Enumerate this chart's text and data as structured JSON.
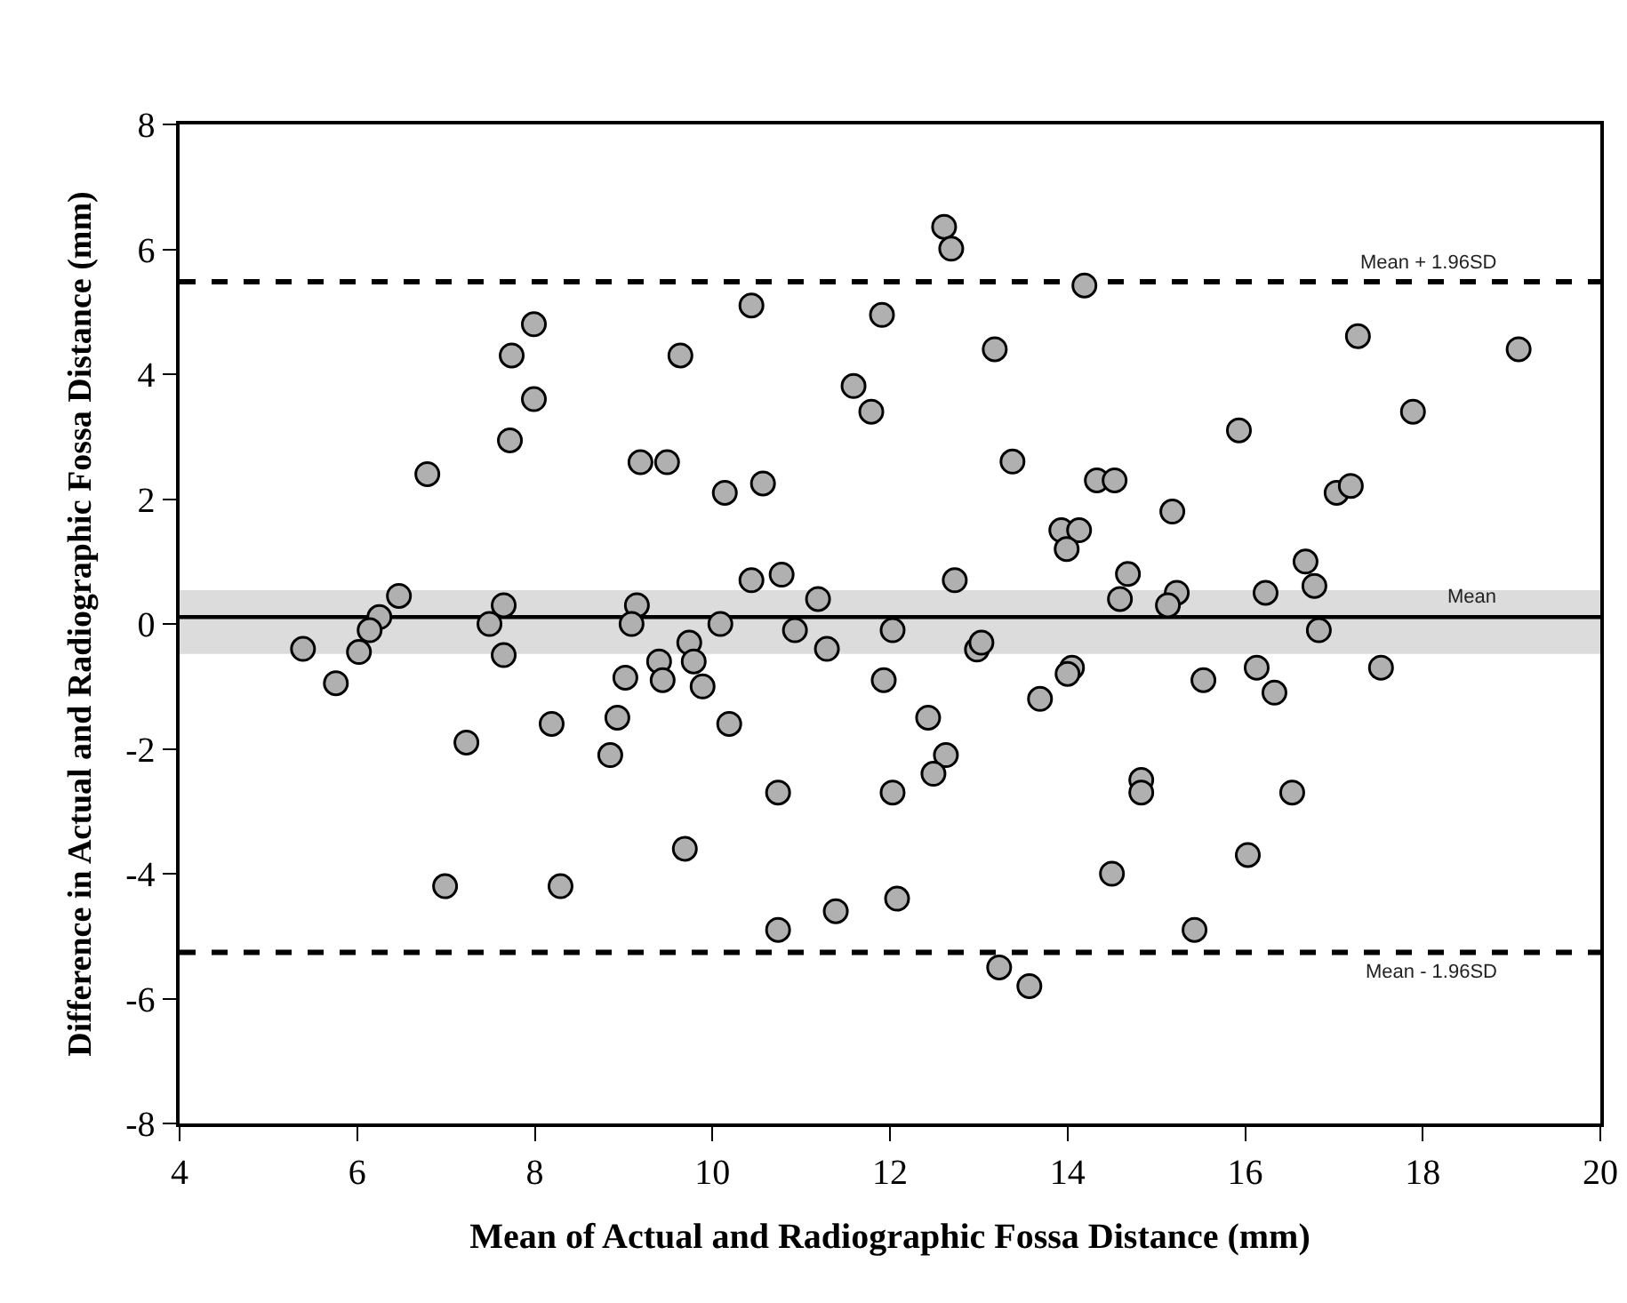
{
  "chart_data": {
    "type": "scatter",
    "xlabel": "Mean of Actual and Radiographic Fossa Distance (mm)",
    "ylabel": "Difference in Actual and Radiographic Fossa Distance (mm)",
    "xlim": [
      4,
      20
    ],
    "xticks": [
      4,
      6,
      8,
      10,
      12,
      14,
      16,
      18,
      20
    ],
    "ylim": [
      -8,
      8
    ],
    "yticks": [
      -8,
      -6,
      -4,
      -2,
      0,
      2,
      4,
      6,
      8
    ],
    "grid": false,
    "marker": "circle",
    "series": [
      {
        "color": "#b0b0b0",
        "x": [
          10.44,
          11.91,
          7.99,
          7.74,
          9.64,
          7.99,
          11.59,
          11.79,
          7.72,
          6.79,
          9.19,
          9.49,
          10.14,
          10.57,
          10.44,
          10.78,
          11.19,
          6.47,
          6.25,
          6.14,
          7.65,
          7.49,
          7.65,
          9.15,
          9.09,
          10.09,
          9.74,
          9.79,
          9.4,
          10.93,
          11.29,
          12.03,
          5.39,
          6.02,
          5.76,
          9.02,
          9.44,
          9.89,
          8.19,
          8.93,
          10.19,
          7.23,
          8.85,
          10.74,
          12.03,
          9.69,
          6.99,
          8.29,
          12.08,
          11.39,
          10.74,
          11.93,
          12.98,
          13.03,
          14.05,
          14.0,
          15.53,
          16.13,
          16.33,
          17.53,
          13.69,
          12.43,
          12.63,
          12.49,
          14.83,
          14.83,
          16.53,
          16.03,
          14.5,
          15.43,
          13.23,
          13.57,
          12.61,
          12.69,
          14.19,
          13.18,
          17.27,
          19.08,
          17.89,
          15.93,
          13.38,
          14.33,
          14.53,
          17.03,
          17.19,
          15.18,
          13.93,
          14.13,
          13.99,
          16.68,
          12.73,
          14.68,
          14.59,
          15.23,
          15.13,
          16.23,
          16.78,
          16.83
        ],
        "values": [
          5.1,
          4.95,
          4.8,
          4.3,
          4.3,
          3.6,
          3.81,
          3.4,
          2.94,
          2.4,
          2.59,
          2.59,
          2.1,
          2.25,
          0.7,
          0.79,
          0.4,
          0.45,
          0.11,
          -0.1,
          0.3,
          0.0,
          -0.5,
          0.3,
          0.0,
          0.0,
          -0.3,
          -0.6,
          -0.6,
          -0.1,
          -0.4,
          -0.1,
          -0.4,
          -0.45,
          -0.95,
          -0.86,
          -0.9,
          -1.0,
          -1.6,
          -1.5,
          -1.6,
          -1.9,
          -2.1,
          -2.7,
          -2.7,
          -3.6,
          -4.2,
          -4.2,
          -4.4,
          -4.6,
          -4.9,
          -0.9,
          -0.41,
          -0.3,
          -0.7,
          -0.8,
          -0.9,
          -0.7,
          -1.1,
          -0.7,
          -1.2,
          -1.5,
          -2.1,
          -2.4,
          -2.5,
          -2.7,
          -2.7,
          -3.7,
          -4.0,
          -4.9,
          -5.5,
          -5.8,
          6.36,
          6.01,
          5.42,
          4.4,
          4.61,
          4.4,
          3.4,
          3.1,
          2.6,
          2.3,
          2.3,
          2.1,
          2.21,
          1.8,
          1.5,
          1.5,
          1.2,
          1.0,
          0.7,
          0.8,
          0.4,
          0.5,
          0.3,
          0.5,
          0.61,
          -0.1
        ]
      }
    ],
    "ref_lines": [
      {
        "axis": "y",
        "value": 5.48,
        "label": "Mean + 1.96SD",
        "color": "#000000",
        "line_style": "dashed"
      },
      {
        "axis": "y",
        "value": 0.11,
        "label": "Mean",
        "color": "#000000",
        "line_style": "solid"
      },
      {
        "axis": "y",
        "value": -5.26,
        "label": "Mean - 1.96SD",
        "color": "#000000",
        "line_style": "dashed"
      }
    ],
    "bands": [
      {
        "axis": "y",
        "from": -0.48,
        "to": 0.54,
        "color": "#dcdcdc"
      }
    ]
  }
}
